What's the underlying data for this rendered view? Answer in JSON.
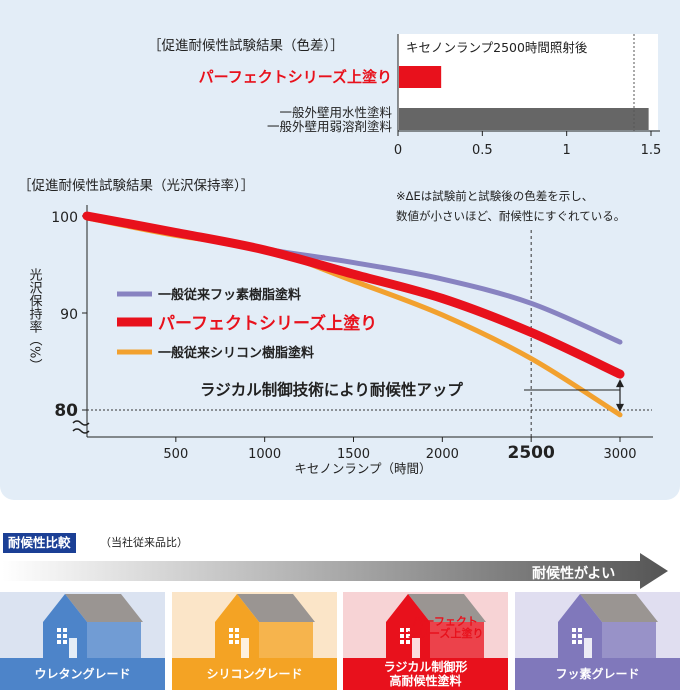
{
  "chart_data": [
    {
      "type": "bar",
      "orientation": "horizontal",
      "title": "［促進耐候性試験結果（色差）］",
      "subtitle": "キセノンランプ2500時間照射後",
      "categories": [
        "パーフェクトシリーズ上塗り",
        "一般外壁用水性塗料\n一般外壁用弱溶剤塗料"
      ],
      "category_lines": [
        [
          "パーフェクトシリーズ上塗り"
        ],
        [
          "一般外壁用水性塗料",
          "一般外壁用弱溶剤塗料"
        ]
      ],
      "values": [
        0.25,
        1.48
      ],
      "colors": [
        "#e8111c",
        "#666666"
      ],
      "xlim": [
        0,
        1.5
      ],
      "xticks": [
        0,
        0.5,
        1,
        1.5
      ],
      "xtick_labels": [
        "0",
        "0.5",
        "1",
        "1.5"
      ],
      "grid": false
    },
    {
      "type": "line",
      "title": "［促進耐候性試験結果（光沢保持率）］",
      "xlabel": "キセノンランプ（時間）",
      "ylabel": "光沢保持率（%）",
      "xlim": [
        0,
        3000
      ],
      "ylim": [
        80,
        100
      ],
      "xticks": [
        500,
        1000,
        1500,
        2000,
        2500,
        3000
      ],
      "xtick_labels": [
        "500",
        "1000",
        "1500",
        "2000",
        "2500",
        "3000"
      ],
      "yticks": [
        80,
        90,
        100
      ],
      "ytick_labels": [
        "80",
        "90",
        "100"
      ],
      "note_lines": [
        "※ΔEは試験前と試験後の色差を示し、",
        "数値が小さいほど、耐候性にすぐれている。"
      ],
      "annotation": "ラジカル制御技術により耐候性アップ",
      "reference_x": 2500,
      "reference_y": 80,
      "legend_position": "middle-left",
      "series": [
        {
          "name": "一般従来フッ素樹脂塗料",
          "color": "#8883c1",
          "x": [
            0,
            500,
            1000,
            1500,
            2000,
            2500,
            3000
          ],
          "y": [
            100,
            98.3,
            96.6,
            95.2,
            93.5,
            91.0,
            87.0
          ]
        },
        {
          "name": "パーフェクトシリーズ上塗り",
          "color": "#e8111c",
          "x": [
            0,
            500,
            1000,
            1500,
            2000,
            2500,
            3000
          ],
          "y": [
            100,
            98.3,
            96.5,
            94.0,
            91.5,
            88.0,
            83.7
          ]
        },
        {
          "name": "一般従来シリコン樹脂塗料",
          "color": "#f2a12f",
          "x": [
            0,
            500,
            1000,
            1500,
            2000,
            2500,
            3000
          ],
          "y": [
            99.8,
            98.0,
            96.6,
            93.3,
            89.8,
            85.3,
            79.5
          ]
        }
      ]
    }
  ],
  "comparison": {
    "title": "耐候性比較",
    "subtitle": "（当社従来品比）",
    "arrow_label": "耐候性がよい",
    "grades": [
      {
        "label_lines": [
          "ウレタングレード"
        ],
        "roof_color": "#9a9592",
        "house_color": "#4d84c9",
        "bg": "#dbe3f1",
        "label_bg": "#4d84c9"
      },
      {
        "label_lines": [
          "シリコングレード"
        ],
        "roof_color": "#9a9592",
        "house_color": "#f4a324",
        "bg": "#fbe5c8",
        "label_bg": "#f4a324"
      },
      {
        "label_lines": [
          "ラジカル制御形",
          "高耐候性塗料"
        ],
        "roof_color": "#9a9592",
        "house_color": "#e8111c",
        "bg": "#f7d3d5",
        "label_bg": "#e8111c",
        "badge_lines": [
          "パーフェクト",
          "シリーズ上塗り"
        ]
      },
      {
        "label_lines": [
          "フッ素グレード"
        ],
        "roof_color": "#9a9592",
        "house_color": "#8078bb",
        "bg": "#e0def0",
        "label_bg": "#8078bb"
      }
    ]
  }
}
